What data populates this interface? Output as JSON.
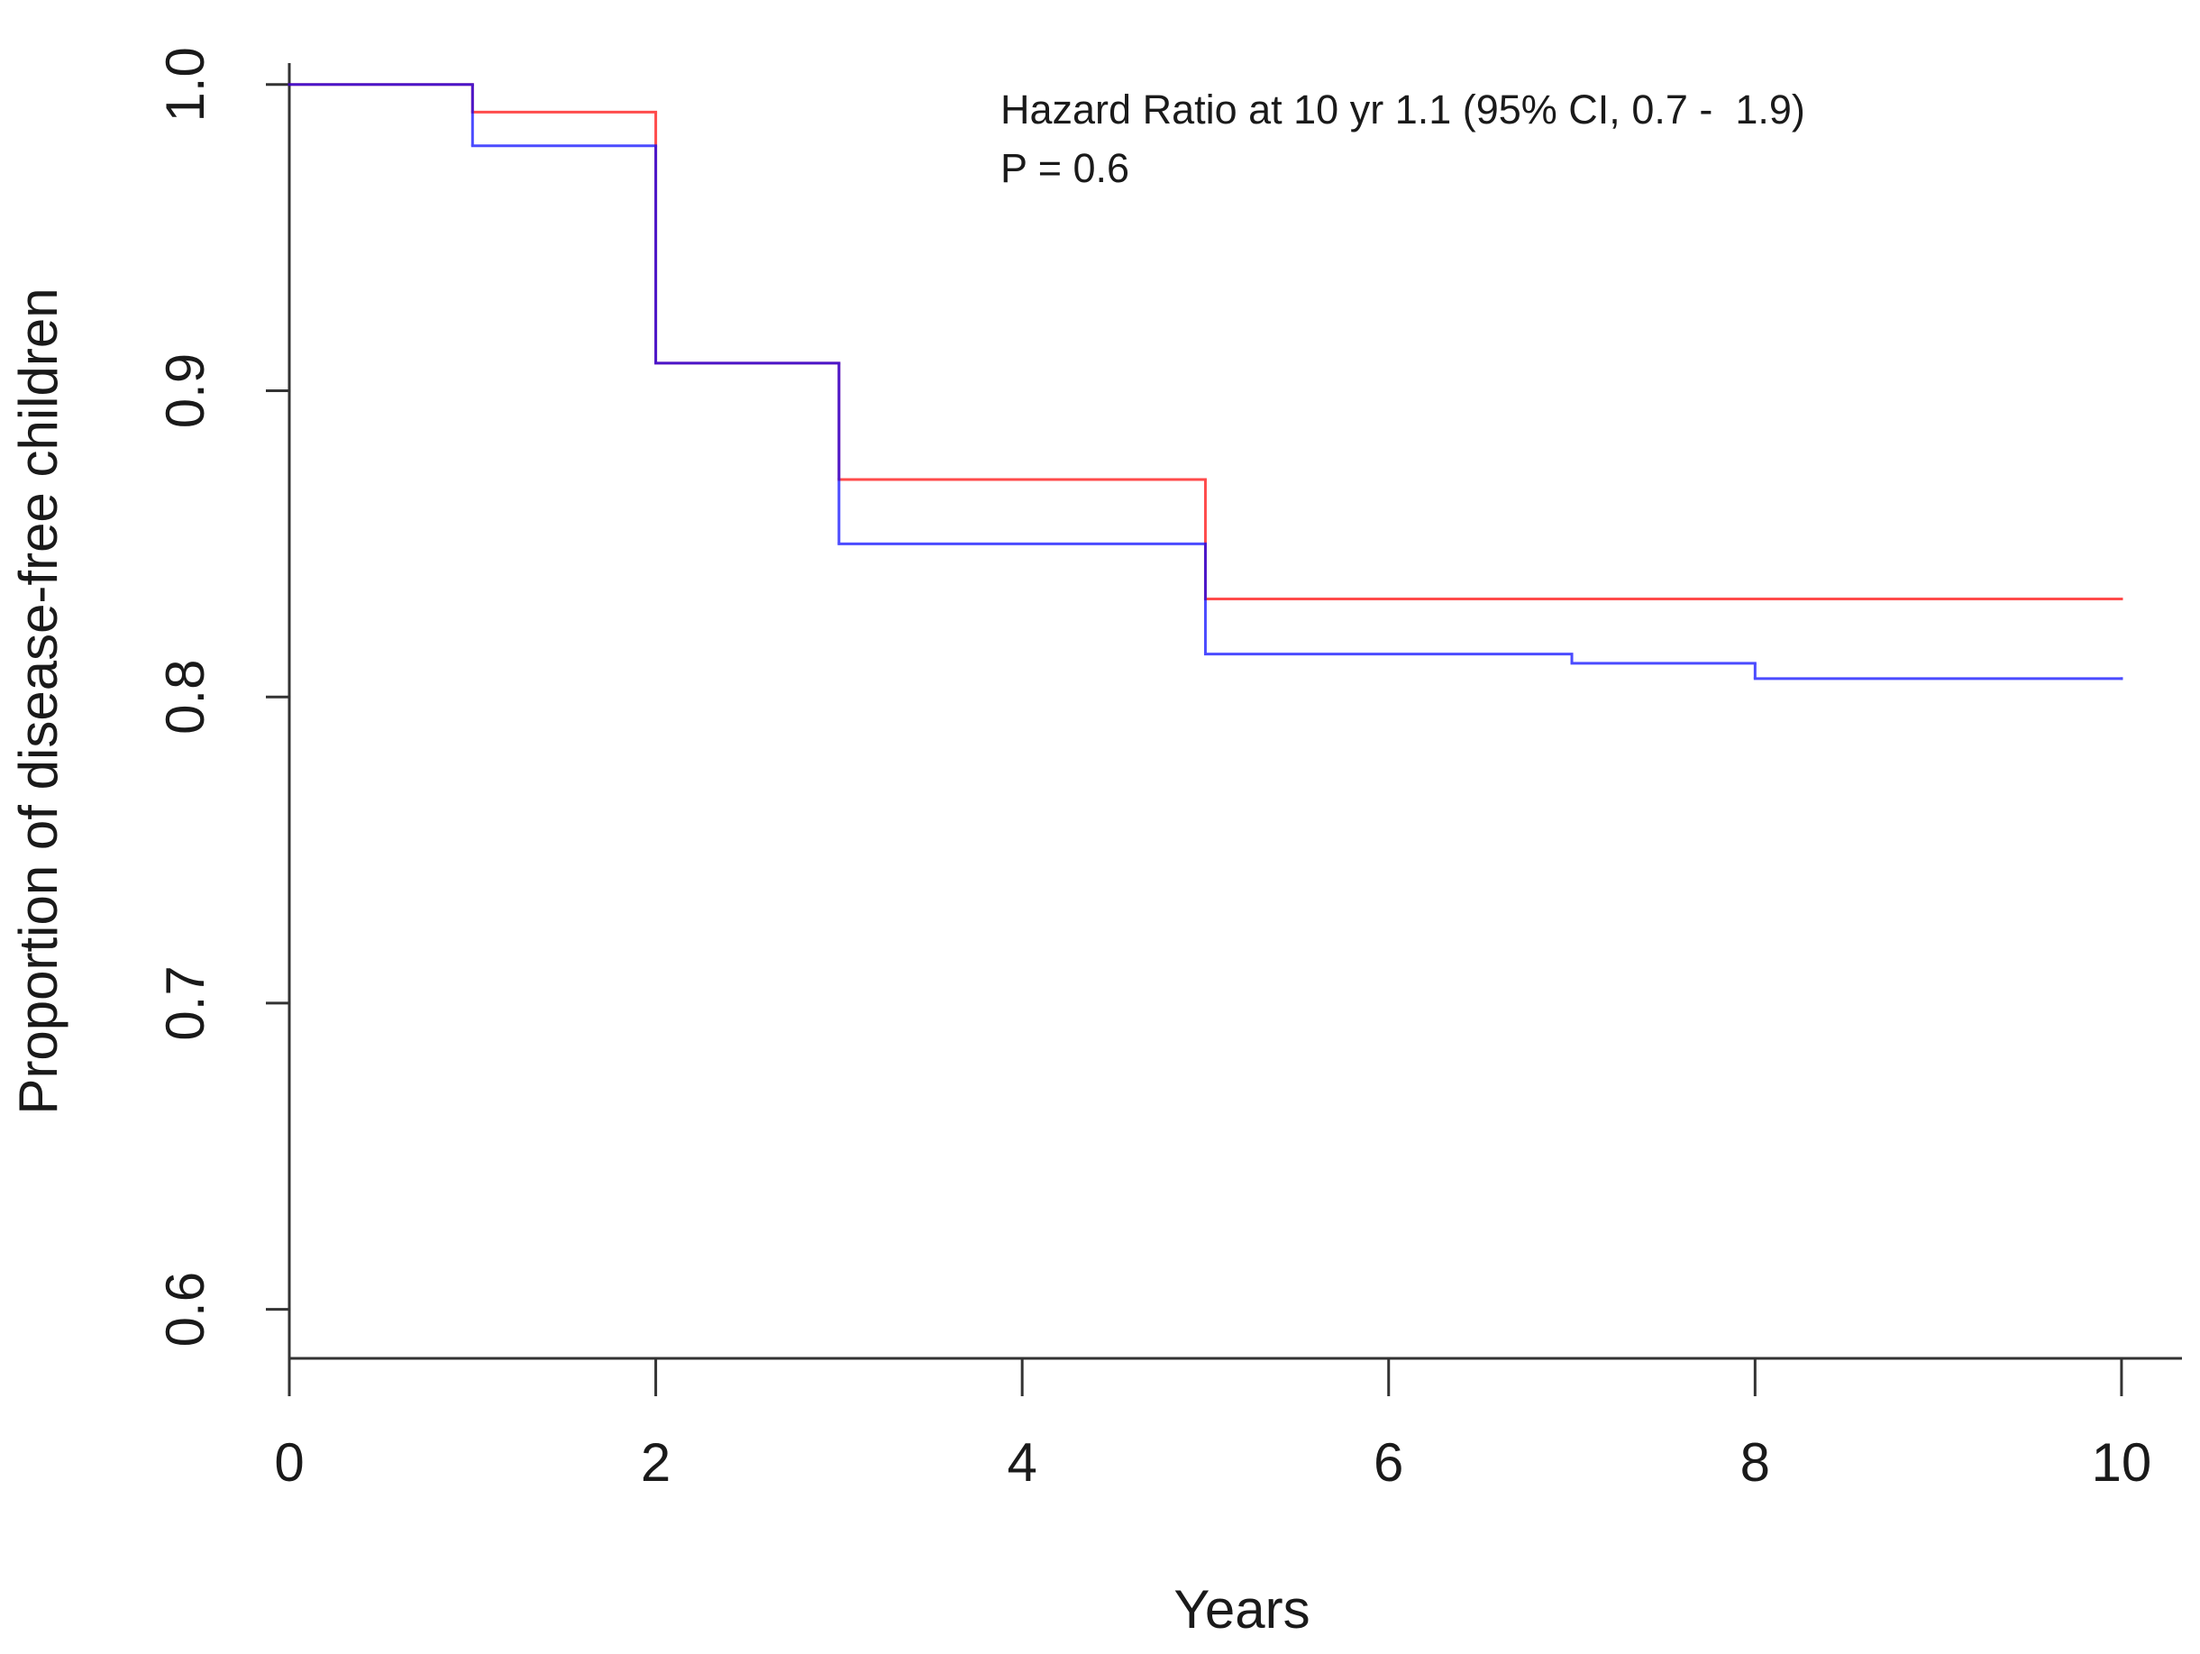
{
  "chart_data": {
    "type": "step",
    "xlabel": "Years",
    "ylabel": "Proportion of disease-free children",
    "annotations": [
      "Hazard Ratio at 10 yr 1.1 (95% CI, 0.7 -  1.9)",
      "P = 0.6"
    ],
    "x": [
      0,
      1,
      2,
      3,
      5,
      7,
      8,
      10
    ],
    "series": [
      {
        "color": "#ff0000",
        "values": [
          1.0,
          0.991,
          0.909,
          0.871,
          0.832,
          0.832,
          0.832,
          0.832
        ]
      },
      {
        "color": "#0000ff",
        "values": [
          1.0,
          0.98,
          0.909,
          0.85,
          0.814,
          0.811,
          0.806,
          0.806
        ]
      }
    ],
    "xlim": [
      0,
      10.33
    ],
    "xticks": [
      0,
      2,
      4,
      6,
      8,
      10
    ],
    "ylim": [
      0.584,
      1.007
    ],
    "yticks": [
      {
        "value": 0.6,
        "label": "0.6"
      },
      {
        "value": 0.7,
        "label": "0.7"
      },
      {
        "value": 0.8,
        "label": "0.8"
      },
      {
        "value": 0.9,
        "label": "0.9"
      },
      {
        "value": 1.0,
        "label": "1.0"
      }
    ]
  }
}
